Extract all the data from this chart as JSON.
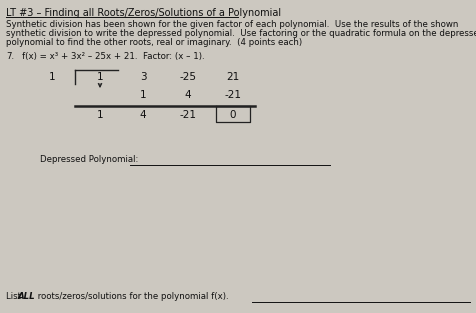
{
  "title": "LT #3 – Finding all Roots/Zeros/Solutions of a Polynomial",
  "instr1": "Synthetic division has been shown for the given factor of each polynomial.  Use the results of the shown",
  "instr2": "synthetic division to write the depressed polynomial.  Use factoring or the quadratic formula on the depressed",
  "instr3": "polynomial to find the other roots, real or imaginary.  (4 points each)",
  "problem_number": "7.",
  "problem_fx": "f(x) = x³ + 3x² – 25x + 21.  Factor: (x – 1).",
  "synth_divisor": "1",
  "synth_row1": [
    "1",
    "3",
    "-25",
    "21"
  ],
  "synth_row2": [
    "",
    "1",
    "4",
    "-21"
  ],
  "synth_row3": [
    "1",
    "4",
    "-21",
    "0"
  ],
  "depressed_label": "Depressed Polynomial:",
  "list_label_pre": "List ",
  "list_label_bold": "ALL",
  "list_label_post": " roots/zeros/solutions for the polynomial f(x).",
  "bg_color": "#ccc8c0",
  "line_color": "#222222",
  "text_color": "#111111",
  "title_fontsize": 7.0,
  "body_fontsize": 6.2,
  "table_fontsize": 7.5
}
